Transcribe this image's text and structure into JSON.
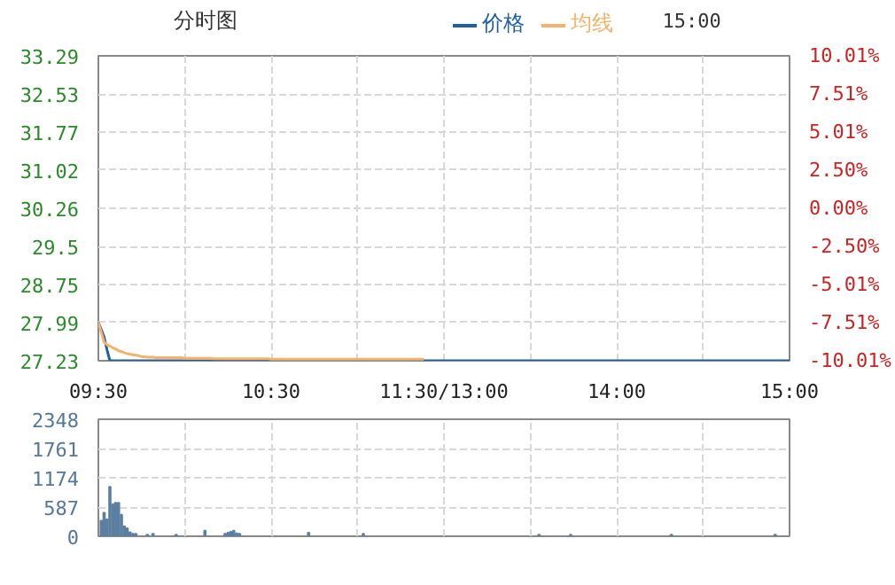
{
  "chart_data": [
    {
      "type": "line",
      "title": "分时图",
      "annotations": [
        "15:00"
      ],
      "legend": "top",
      "grid": true,
      "categories": [
        "09:30",
        null,
        null,
        null,
        null,
        null,
        null,
        null,
        null,
        null,
        null,
        null,
        null,
        null,
        null,
        null,
        null,
        null,
        null,
        null,
        null,
        null,
        null,
        null,
        null,
        null,
        null,
        null,
        null,
        null,
        null,
        null,
        null,
        null,
        null,
        null,
        null,
        null,
        null,
        null,
        null,
        null,
        null,
        null,
        null,
        null,
        null,
        null,
        null,
        null,
        null,
        null,
        null,
        null,
        null,
        null,
        null,
        null,
        null,
        null,
        "10:30",
        null,
        null,
        null,
        null,
        null,
        null,
        null,
        null,
        null,
        null,
        null,
        null,
        null,
        null,
        null,
        null,
        null,
        null,
        null,
        null,
        null,
        null,
        null,
        null,
        null,
        null,
        null,
        null,
        null,
        null,
        null,
        null,
        null,
        null,
        null,
        null,
        null,
        null,
        null,
        null,
        null,
        null,
        null,
        null,
        null,
        null,
        null,
        null,
        null,
        null,
        null,
        null,
        null,
        null,
        null,
        null,
        null,
        null,
        null,
        "11:30/13:00",
        null,
        null,
        null,
        null,
        null,
        null,
        null,
        null,
        null,
        null,
        null,
        null,
        null,
        null,
        null,
        null,
        null,
        null,
        null,
        null,
        null,
        null,
        null,
        null,
        null,
        null,
        null,
        null,
        null,
        null,
        null,
        null,
        null,
        null,
        null,
        null,
        null,
        null,
        null,
        null,
        null,
        null,
        null,
        null,
        null,
        null,
        null,
        null,
        null,
        null,
        null,
        null,
        null,
        null,
        null,
        null,
        null,
        null,
        null,
        "14:00",
        null,
        null,
        null,
        null,
        null,
        null,
        null,
        null,
        null,
        null,
        null,
        null,
        null,
        null,
        null,
        null,
        null,
        null,
        null,
        null,
        null,
        null,
        null,
        null,
        null,
        null,
        null,
        null,
        null,
        null,
        null,
        null,
        null,
        null,
        null,
        null,
        null,
        null,
        null,
        null,
        null,
        null,
        null,
        null,
        null,
        null,
        null,
        null,
        null,
        null,
        null,
        null,
        null,
        null,
        null,
        null,
        null,
        null,
        null,
        "15:00"
      ],
      "ylim": [
        27.23,
        33.29
      ],
      "yticks": [
        27.23,
        27.99,
        28.75,
        29.5,
        30.26,
        31.02,
        31.77,
        32.53,
        33.29
      ],
      "y2lim": [
        -10.01,
        10.01
      ],
      "y2ticks": [
        {
          "value": -10.01,
          "label": "-10.01%"
        },
        {
          "value": -7.51,
          "label": "-7.51%"
        },
        {
          "value": -5.01,
          "label": "-5.01%"
        },
        {
          "value": -2.5,
          "label": "-2.50%"
        },
        {
          "value": 0,
          "label": "0.00%"
        },
        {
          "value": 2.5,
          "label": "2.50%"
        },
        {
          "value": 5.01,
          "label": "5.01%"
        },
        {
          "value": 7.51,
          "label": "7.51%"
        },
        {
          "value": 10.01,
          "label": "10.01%"
        }
      ],
      "series": [
        {
          "name": "价格",
          "color": "#1f5fa8",
          "values": [
            27.99,
            27.85,
            27.7,
            27.45,
            27.23,
            27.23,
            27.23,
            27.23,
            27.23,
            27.23,
            27.23,
            27.23,
            27.23,
            27.23,
            27.23,
            27.23,
            27.23,
            27.23,
            27.23,
            27.23,
            27.23,
            27.23,
            27.23,
            27.23,
            27.23,
            27.23,
            27.23,
            27.23,
            27.23,
            27.23,
            27.23,
            27.23,
            27.23,
            27.23,
            27.23,
            27.23,
            27.23,
            27.23,
            27.23,
            27.23,
            27.23,
            27.23,
            27.23,
            27.23,
            27.23,
            27.23,
            27.23,
            27.23,
            27.23,
            27.23,
            27.23,
            27.23,
            27.23,
            27.23,
            27.23,
            27.23,
            27.23,
            27.23,
            27.23,
            27.23,
            27.23,
            27.23,
            27.23,
            27.23,
            27.23,
            27.23,
            27.23,
            27.23,
            27.23,
            27.23,
            27.23,
            27.23,
            27.23,
            27.23,
            27.23,
            27.23,
            27.23,
            27.23,
            27.23,
            27.23,
            27.23,
            27.23,
            27.23,
            27.23,
            27.23,
            27.23,
            27.23,
            27.23,
            27.23,
            27.23,
            27.23,
            27.23,
            27.23,
            27.23,
            27.23,
            27.23,
            27.23,
            27.23,
            27.23,
            27.23,
            27.23,
            27.23,
            27.23,
            27.23,
            27.23,
            27.23,
            27.23,
            27.23,
            27.23,
            27.23,
            27.23,
            27.23,
            27.23,
            27.23,
            27.23,
            27.23,
            27.23,
            27.23,
            27.23,
            27.23,
            27.23,
            27.23,
            27.23,
            27.23,
            27.23,
            27.23,
            27.23,
            27.23,
            27.23,
            27.23,
            27.23,
            27.23,
            27.23,
            27.23,
            27.23,
            27.23,
            27.23,
            27.23,
            27.23,
            27.23,
            27.23,
            27.23,
            27.23,
            27.23,
            27.23,
            27.23,
            27.23,
            27.23,
            27.23,
            27.23,
            27.23,
            27.23,
            27.23,
            27.23,
            27.23,
            27.23,
            27.23,
            27.23,
            27.23,
            27.23,
            27.23,
            27.23,
            27.23,
            27.23,
            27.23,
            27.23,
            27.23,
            27.23,
            27.23,
            27.23,
            27.23,
            27.23,
            27.23,
            27.23,
            27.23,
            27.23,
            27.23,
            27.23,
            27.23,
            27.23,
            27.23,
            27.23,
            27.23,
            27.23,
            27.23,
            27.23,
            27.23,
            27.23,
            27.23,
            27.23,
            27.23,
            27.23,
            27.23,
            27.23,
            27.23,
            27.23,
            27.23,
            27.23,
            27.23,
            27.23,
            27.23,
            27.23,
            27.23,
            27.23,
            27.23,
            27.23,
            27.23,
            27.23,
            27.23,
            27.23,
            27.23,
            27.23,
            27.23,
            27.23,
            27.23,
            27.23,
            27.23,
            27.23,
            27.23,
            27.23,
            27.23,
            27.23,
            27.23,
            27.23,
            27.23,
            27.23,
            27.23,
            27.23,
            27.23,
            27.23,
            27.23,
            27.23,
            27.23,
            27.23,
            27.23,
            27.23,
            27.23,
            27.23,
            27.23,
            27.23,
            27.23
          ]
        },
        {
          "name": "均线",
          "color": "#f5b26b",
          "values": [
            27.99,
            27.8,
            27.6,
            27.55,
            27.52,
            27.49,
            27.46,
            27.43,
            27.41,
            27.39,
            27.37,
            27.36,
            27.35,
            27.34,
            27.33,
            27.31,
            27.31,
            27.3,
            27.3,
            27.3,
            27.29,
            27.29,
            27.29,
            27.29,
            27.29,
            27.29,
            27.29,
            27.29,
            27.29,
            27.29,
            27.28,
            27.28,
            27.28,
            27.28,
            27.28,
            27.28,
            27.28,
            27.28,
            27.28,
            27.28,
            27.27,
            27.27,
            27.27,
            27.27,
            27.27,
            27.27,
            27.27,
            27.27,
            27.27,
            27.27,
            27.27,
            27.27,
            27.27,
            27.27,
            27.27,
            27.27,
            27.27,
            27.27,
            27.27,
            27.27,
            27.26,
            27.26,
            27.26,
            27.26,
            27.26,
            27.26,
            27.26,
            27.26,
            27.26,
            27.26,
            27.26,
            27.26,
            27.26,
            27.26,
            27.26,
            27.26,
            27.26,
            27.26,
            27.26,
            27.26,
            27.26,
            27.26,
            27.26,
            27.26,
            27.26,
            27.26,
            27.26,
            27.26,
            27.26,
            27.26,
            27.26,
            27.26,
            27.26,
            27.26,
            27.26,
            27.26,
            27.26,
            27.26,
            27.26,
            27.26,
            27.26,
            27.26,
            27.26,
            27.26,
            27.26,
            27.26,
            27.26,
            27.26,
            27.26,
            27.26,
            27.26,
            27.26,
            27.26,
            27.26,
            null,
            null,
            null,
            null,
            null,
            null,
            null,
            null,
            null,
            null,
            null,
            null,
            null,
            null,
            null,
            null,
            null,
            null,
            null,
            null,
            null,
            null,
            null,
            null,
            null,
            null,
            null,
            null,
            null,
            null,
            null,
            null,
            null,
            null,
            null,
            null,
            null,
            null,
            null,
            null,
            null,
            null,
            null,
            null,
            null,
            null,
            null,
            null,
            null,
            null,
            null,
            null,
            null,
            null,
            null,
            null,
            null,
            null,
            null,
            null,
            null,
            null,
            null,
            null,
            null,
            null,
            null,
            null,
            null,
            null,
            null,
            null,
            null,
            null,
            null,
            null,
            null,
            null,
            null,
            null,
            null,
            null,
            null,
            null,
            null,
            null,
            null,
            null,
            null,
            null,
            null,
            null,
            null,
            null,
            null,
            null,
            null,
            null,
            null,
            null,
            null,
            null,
            null,
            null,
            null,
            null,
            null,
            null,
            null,
            null,
            null,
            null,
            null,
            null,
            null,
            null,
            null,
            null,
            null,
            null,
            null,
            null,
            null,
            null,
            null,
            null,
            null
          ]
        }
      ]
    },
    {
      "type": "bar",
      "grid": true,
      "color": "#5a7fa0",
      "categories": [
        null,
        null,
        null,
        null,
        null,
        null,
        null,
        null,
        null,
        null,
        null,
        null,
        null,
        null,
        null,
        null,
        null,
        null,
        null,
        null,
        null,
        null,
        null,
        null,
        null,
        null,
        null,
        null,
        null,
        null,
        null,
        null,
        null,
        null,
        null,
        null,
        null,
        null,
        null,
        null,
        null,
        null,
        null,
        null,
        null,
        null,
        null,
        null,
        null,
        null,
        null,
        null,
        null,
        null,
        null,
        null,
        null,
        null,
        null,
        null,
        null,
        null,
        null,
        null,
        null,
        null,
        null,
        null,
        null,
        null,
        null,
        null,
        null,
        null,
        null,
        null,
        null,
        null,
        null,
        null,
        null,
        null,
        null,
        null,
        null,
        null,
        null,
        null,
        null,
        null,
        null,
        null,
        null,
        null,
        null,
        null,
        null,
        null,
        null,
        null,
        null,
        null,
        null,
        null,
        null,
        null,
        null,
        null,
        null,
        null,
        null,
        null,
        null,
        null,
        null,
        null,
        null,
        null,
        null,
        null,
        null,
        null,
        null,
        null,
        null,
        null,
        null,
        null,
        null,
        null,
        null,
        null,
        null,
        null,
        null,
        null,
        null,
        null,
        null,
        null,
        null,
        null,
        null,
        null,
        null,
        null,
        null,
        null,
        null,
        null,
        null,
        null,
        null,
        null,
        null,
        null,
        null,
        null,
        null,
        null,
        null,
        null,
        null,
        null,
        null,
        null,
        null,
        null,
        null,
        null,
        null,
        null,
        null,
        null,
        null,
        null,
        null,
        null,
        null,
        null,
        null,
        null,
        null,
        null,
        null,
        null,
        null,
        null,
        null,
        null,
        null,
        null,
        null,
        null,
        null,
        null,
        null,
        null,
        null,
        null,
        null,
        null,
        null,
        null,
        null,
        null,
        null,
        null,
        null,
        null,
        null,
        null,
        null,
        null,
        null,
        null,
        null,
        null,
        null,
        null,
        null,
        null,
        null,
        null,
        null,
        null,
        null,
        null,
        null,
        null,
        null,
        null,
        null,
        null,
        null,
        null,
        null,
        null,
        null,
        null,
        null
      ],
      "ylim": [
        0,
        2348
      ],
      "yticks": [
        0,
        587,
        1174,
        1761,
        2348
      ],
      "values": [
        null,
        310,
        470,
        340,
        990,
        640,
        670,
        670,
        430,
        200,
        160,
        80,
        50,
        50,
        null,
        null,
        null,
        30,
        null,
        50,
        null,
        null,
        null,
        null,
        null,
        null,
        null,
        30,
        null,
        null,
        null,
        null,
        null,
        null,
        null,
        null,
        null,
        110,
        null,
        null,
        null,
        null,
        null,
        null,
        50,
        70,
        90,
        110,
        60,
        50,
        null,
        null,
        null,
        null,
        null,
        null,
        null,
        null,
        null,
        null,
        null,
        null,
        null,
        null,
        null,
        null,
        null,
        null,
        null,
        null,
        null,
        null,
        null,
        70,
        null,
        null,
        null,
        null,
        null,
        null,
        null,
        null,
        null,
        null,
        null,
        null,
        null,
        null,
        null,
        null,
        null,
        null,
        50,
        null,
        null,
        null,
        null,
        null,
        null,
        null,
        null,
        null,
        null,
        null,
        null,
        null,
        null,
        null,
        null,
        null,
        null,
        null,
        null,
        null,
        null,
        null,
        null,
        null,
        null,
        null,
        null,
        null,
        null,
        null,
        null,
        null,
        null,
        null,
        null,
        null,
        null,
        null,
        null,
        null,
        null,
        null,
        null,
        null,
        null,
        null,
        null,
        null,
        null,
        null,
        null,
        null,
        null,
        null,
        null,
        null,
        null,
        null,
        null,
        30,
        null,
        null,
        null,
        null,
        null,
        null,
        null,
        null,
        null,
        null,
        30,
        null,
        null,
        null,
        null,
        null,
        null,
        null,
        null,
        null,
        null,
        null,
        null,
        null,
        null,
        null,
        null,
        null,
        null,
        null,
        null,
        null,
        null,
        null,
        null,
        null,
        null,
        null,
        null,
        null,
        null,
        null,
        null,
        null,
        null,
        30,
        null,
        null,
        null,
        null,
        null,
        null,
        null,
        null,
        null,
        null,
        null,
        null,
        null,
        null,
        null,
        null,
        null,
        null,
        null,
        null,
        null,
        null,
        null,
        null,
        null,
        null,
        null,
        null,
        null,
        null,
        null,
        null,
        null,
        null,
        null,
        30,
        null,
        null,
        null,
        null,
        null
      ]
    }
  ]
}
